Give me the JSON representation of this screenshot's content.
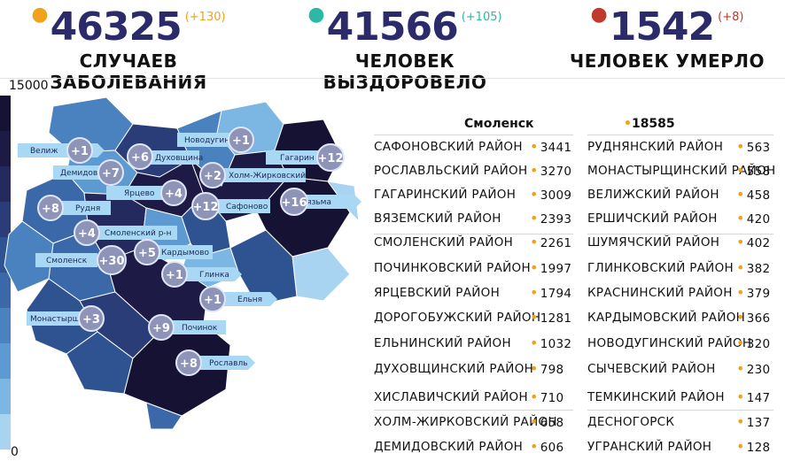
{
  "stats": [
    {
      "value": "46325",
      "delta": "(+130)",
      "caption": "СЛУЧАЕВ ЗАБОЛЕВАНИЯ",
      "dot_color": "#f0a21b",
      "delta_color": "#f0a21b"
    },
    {
      "value": "41566",
      "delta": "(+105)",
      "caption": "ЧЕЛОВЕК ВЫЗДОРОВЕЛО",
      "dot_color": "#2bb8a5",
      "delta_color": "#2bb8a5"
    },
    {
      "value": "1542",
      "delta": "(+8)",
      "caption": "ЧЕЛОВЕК УМЕРЛО",
      "dot_color": "#c0392b",
      "delta_color": "#c0392b"
    }
  ],
  "legend": {
    "max": "15000",
    "min": "0"
  },
  "table": {
    "city": {
      "name": "Смоленск",
      "value": "18585"
    },
    "left": [
      {
        "name": "САФОНОВСКИЙ РАЙОН",
        "value": "3441"
      },
      {
        "name": "РОСЛАВЛЬСКИЙ РАЙОН",
        "value": "3270"
      },
      {
        "name": "ГАГАРИНСКИЙ РАЙОН",
        "value": "3009"
      },
      {
        "name": "ВЯЗЕМСКИЙ РАЙОН",
        "value": "2393"
      },
      {
        "name": "СМОЛЕНСКИЙ РАЙОН",
        "value": "2261"
      },
      {
        "name": "ПОЧИНКОВСКИЙ РАЙОН",
        "value": "1997"
      },
      {
        "name": "ЯРЦЕВСКИЙ РАЙОН",
        "value": "1794"
      },
      {
        "name": "ДОРОГОБУЖСКИЙ РАЙОН",
        "value": "1281"
      },
      {
        "name": "ЕЛЬНИНСКИЙ РАЙОН",
        "value": "1032"
      },
      {
        "name": "ДУХОВЩИНСКИЙ РАЙОН",
        "value": "798"
      },
      {
        "name": "ХИСЛАВИЧСКИЙ РАЙОН",
        "value": "710"
      },
      {
        "name": "ХОЛМ-ЖИРКОВСКИЙ РАЙОН",
        "value": "658"
      },
      {
        "name": "ДЕМИДОВСКИЙ РАЙОН",
        "value": "606"
      }
    ],
    "right": [
      {
        "name": "РУДНЯНСКИЙ РАЙОН",
        "value": "563"
      },
      {
        "name": "МОНАСТЫРЩИНСКИЙ РАЙОН",
        "value": "558"
      },
      {
        "name": "ВЕЛИЖСКИЙ РАЙОН",
        "value": "458"
      },
      {
        "name": "ЕРШИЧСКИЙ РАЙОН",
        "value": "420"
      },
      {
        "name": "ШУМЯЧСКИЙ РАЙОН",
        "value": "402"
      },
      {
        "name": "ГЛИНКОВСКИЙ РАЙОН",
        "value": "382"
      },
      {
        "name": "КРАСНИНСКИЙ РАЙОН",
        "value": "379"
      },
      {
        "name": "КАРДЫМОВСКИЙ РАЙОН",
        "value": "366"
      },
      {
        "name": "НОВОДУГИНСКИЙ РАЙОН",
        "value": "320"
      },
      {
        "name": "СЫЧЕВСКИЙ РАЙОН",
        "value": "230"
      },
      {
        "name": "ТЕМКИНСКИЙ РАЙОН",
        "value": "147"
      },
      {
        "name": "ДЕСНОГОРСК",
        "value": "137"
      },
      {
        "name": "УГРАНСКИЙ РАЙОН",
        "value": "128"
      }
    ]
  },
  "map_labels": [
    {
      "label": "Велиж",
      "delta": "+1"
    },
    {
      "label": "Демидов",
      "delta": "+7"
    },
    {
      "label": "Духовщина",
      "delta": "+6"
    },
    {
      "label": "Новодугино",
      "delta": "+1"
    },
    {
      "label": "Гагарин",
      "delta": "+12"
    },
    {
      "label": "Холм-Жирковский",
      "delta": "+2"
    },
    {
      "label": "Ярцево",
      "delta": "+4"
    },
    {
      "label": "Рудня",
      "delta": "+8"
    },
    {
      "label": "Сафоново",
      "delta": "+12"
    },
    {
      "label": "Вязьма",
      "delta": "+16"
    },
    {
      "label": "Смоленский р-н",
      "delta": "+4"
    },
    {
      "label": "Кардымово",
      "delta": "+5"
    },
    {
      "label": "Смоленск",
      "delta": "+30"
    },
    {
      "label": "Глинка",
      "delta": "+1"
    },
    {
      "label": "Ельня",
      "delta": "+1"
    },
    {
      "label": "Монастырщина",
      "delta": "+3"
    },
    {
      "label": "Починок",
      "delta": "+9"
    },
    {
      "label": "Рославль",
      "delta": "+8"
    }
  ],
  "colors": {
    "accent_dot": "#f0a21b",
    "map_dark": "#1f1a45",
    "map_mid": "#3a5a9a",
    "map_light": "#7fb8e8",
    "callout": "#a9d8f5"
  }
}
